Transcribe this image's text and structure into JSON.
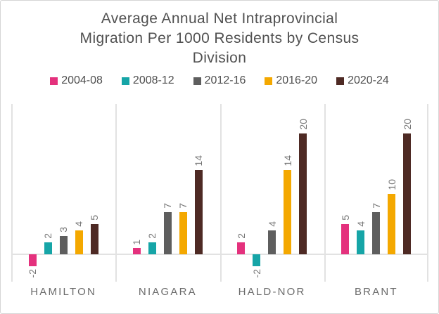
{
  "title": {
    "text": "Average Annual Net Intraprovincial Migration Per 1000 Residents by Census Division",
    "lines": [
      "Average Annual Net Intraprovincial",
      "Migration Per 1000 Residents by Census",
      "Division"
    ]
  },
  "chart_data": {
    "type": "bar",
    "orientation": "vertical",
    "title": "Average Annual Net Intraprovincial Migration Per 1000 Residents by Census Division",
    "xlabel": "",
    "ylabel": "",
    "categories": [
      "HAMILTON",
      "NIAGARA",
      "HALD-NOR",
      "BRANT"
    ],
    "series": [
      {
        "name": "2004-08",
        "color": "#e4317d",
        "values": [
          -2,
          1,
          2,
          5
        ]
      },
      {
        "name": "2008-12",
        "color": "#16a5a7",
        "values": [
          2,
          2,
          -2,
          4
        ]
      },
      {
        "name": "2012-16",
        "color": "#5e5e5e",
        "values": [
          3,
          7,
          4,
          7
        ]
      },
      {
        "name": "2016-20",
        "color": "#f4a800",
        "values": [
          4,
          7,
          14,
          10
        ]
      },
      {
        "name": "2020-24",
        "color": "#4e2a24",
        "values": [
          5,
          14,
          20,
          20
        ]
      }
    ],
    "value_labels_shown": true,
    "value_label_rotation_deg": -90,
    "legend_position": "top",
    "ylim": [
      -4.5,
      25
    ],
    "grid": "vertical panel separators and zero line only",
    "grid_color": "#e2e2e2"
  },
  "style": {
    "title_color": "#515151",
    "legend_text_color": "#4e4e4e",
    "value_label_color": "#767676",
    "category_label_color": "#6b6b6b",
    "card_border_color": "#d5d5d5",
    "background": "#ffffff"
  }
}
